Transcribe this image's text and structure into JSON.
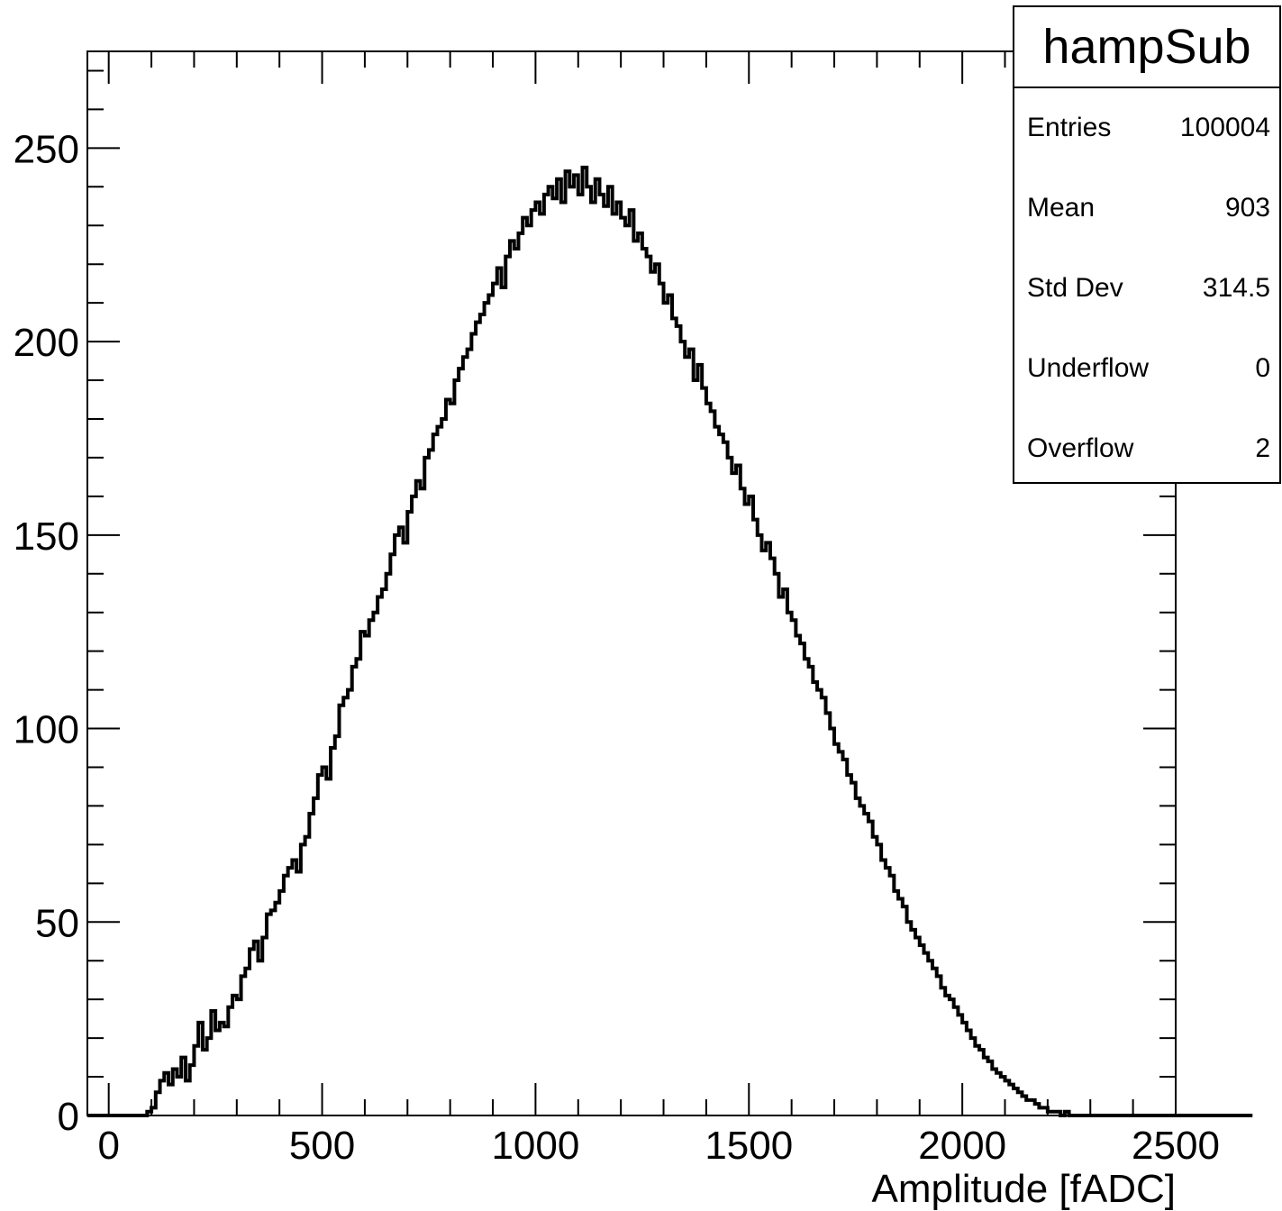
{
  "chart_data": {
    "type": "histogram",
    "title": "hampSub",
    "xlabel": "Amplitude [fADC]",
    "ylabel": "",
    "xlim": [
      -50,
      2500
    ],
    "ylim": [
      0,
      275
    ],
    "xticks": [
      0,
      500,
      1000,
      1500,
      2000,
      2500
    ],
    "yticks": [
      0,
      50,
      100,
      150,
      200,
      250
    ],
    "x_tick_labels": [
      "0",
      "500",
      "1000",
      "1500",
      "2000",
      "2500"
    ],
    "y_tick_labels": [
      "0",
      "50",
      "100",
      "150",
      "200",
      "250"
    ],
    "grid": false,
    "line_color": "#000000",
    "bin_width": 10,
    "bins": {
      "x_start": -50,
      "counts": [
        0,
        0,
        0,
        0,
        0,
        0,
        0,
        0,
        0,
        0,
        0,
        0,
        0,
        0,
        1,
        2,
        6,
        9,
        11,
        8,
        12,
        10,
        15,
        9,
        13,
        18,
        24,
        17,
        20,
        27,
        22,
        24,
        23,
        28,
        31,
        30,
        36,
        38,
        43,
        45,
        40,
        46,
        52,
        53,
        55,
        58,
        62,
        64,
        66,
        63,
        70,
        72,
        78,
        82,
        88,
        90,
        87,
        95,
        98,
        106,
        108,
        110,
        116,
        118,
        125,
        124,
        128,
        130,
        134,
        136,
        140,
        145,
        150,
        152,
        148,
        156,
        160,
        164,
        162,
        170,
        172,
        176,
        178,
        180,
        185,
        184,
        190,
        193,
        196,
        198,
        202,
        205,
        207,
        210,
        212,
        215,
        219,
        214,
        222,
        226,
        224,
        228,
        232,
        230,
        234,
        236,
        233,
        238,
        240,
        237,
        242,
        236,
        244,
        240,
        243,
        238,
        245,
        240,
        236,
        242,
        238,
        235,
        240,
        233,
        236,
        232,
        230,
        234,
        226,
        228,
        224,
        222,
        218,
        220,
        215,
        210,
        212,
        206,
        204,
        200,
        196,
        198,
        190,
        194,
        188,
        184,
        182,
        178,
        176,
        174,
        170,
        166,
        168,
        162,
        158,
        160,
        154,
        150,
        146,
        148,
        144,
        140,
        134,
        136,
        130,
        128,
        124,
        122,
        118,
        116,
        112,
        110,
        108,
        104,
        100,
        96,
        94,
        92,
        88,
        86,
        82,
        80,
        78,
        76,
        72,
        70,
        66,
        64,
        62,
        58,
        56,
        54,
        50,
        48,
        46,
        44,
        42,
        40,
        38,
        36,
        33,
        31,
        30,
        28,
        26,
        24,
        22,
        20,
        18,
        17,
        15,
        14,
        12,
        11,
        10,
        9,
        8,
        7,
        6,
        5,
        4,
        4,
        3,
        2,
        2,
        1,
        1,
        1,
        0,
        1,
        0,
        0,
        0,
        0,
        0,
        0,
        0,
        0,
        0,
        0,
        0,
        0,
        0,
        0,
        0,
        0,
        0,
        0,
        0,
        0,
        0,
        0,
        0,
        0,
        0,
        0,
        0,
        0,
        0,
        0,
        0,
        0,
        0,
        0,
        0,
        0,
        0,
        0,
        0,
        0,
        0,
        0,
        0
      ]
    },
    "stats": [
      {
        "key": "Entries",
        "value": "100004"
      },
      {
        "key": "Mean",
        "value": "903"
      },
      {
        "key": "Std Dev",
        "value": "314.5"
      },
      {
        "key": "Underflow",
        "value": "0"
      },
      {
        "key": "Overflow",
        "value": "2"
      }
    ]
  }
}
